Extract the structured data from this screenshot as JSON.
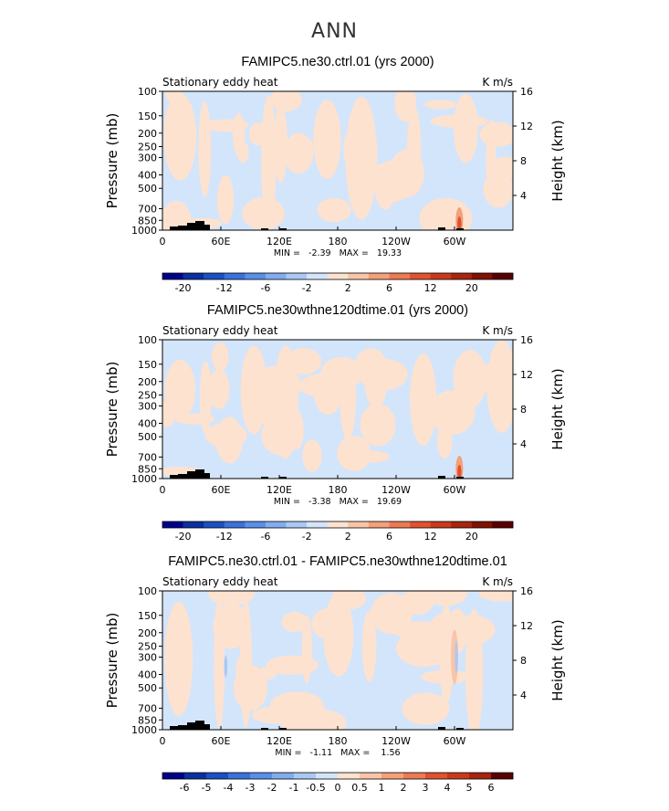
{
  "page_title": "ANN",
  "colors": {
    "neg_small": "#d3e5fb",
    "pos_small": "#fde2d0",
    "topography": "#000000"
  },
  "panels": [
    {
      "title": "FAMIPC5.ne30.ctrl.01 (yrs 2000)",
      "left_label": "Stationary eddy heat",
      "right_label": "K m/s",
      "stats": "MIN =   -2.39   MAX =   19.33",
      "colorbar_labels": [
        "-20",
        "-12",
        "-6",
        "-2",
        "2",
        "6",
        "12",
        "20"
      ]
    },
    {
      "title": "FAMIPC5.ne30wthne120dtime.01 (yrs 2000)",
      "left_label": "Stationary eddy heat",
      "right_label": "K m/s",
      "stats": "MIN =   -3.38   MAX =   19.69",
      "colorbar_labels": [
        "-20",
        "-12",
        "-6",
        "-2",
        "2",
        "6",
        "12",
        "20"
      ]
    },
    {
      "title": "FAMIPC5.ne30.ctrl.01 - FAMIPC5.ne30wthne120dtime.01",
      "left_label": "Stationary eddy heat",
      "right_label": "K m/s",
      "stats": "MIN =   -1.11   MAX =    1.56",
      "colorbar_labels": [
        "-6",
        "-5",
        "-4",
        "-3",
        "-2",
        "-1",
        "-0.5",
        "0",
        "0.5",
        "1",
        "2",
        "3",
        "4",
        "5",
        "6"
      ]
    }
  ],
  "chart_data": [
    {
      "type": "heatmap",
      "title": "FAMIPC5.ne30.ctrl.01 (yrs 2000)",
      "ylabel": "Pressure (mb)",
      "y2label": "Height (km)",
      "x_ticks": [
        "0",
        "60E",
        "120E",
        "180",
        "120W",
        "60W"
      ],
      "y_ticks": [
        "100",
        "150",
        "200",
        "250",
        "300",
        "400",
        "500",
        "700",
        "850",
        "1000"
      ],
      "y2_ticks": [
        "4",
        "8",
        "12",
        "16"
      ],
      "min": -2.39,
      "max": 19.33,
      "colorbar_levels": [
        -20,
        -16,
        -12,
        -8,
        -6,
        -4,
        -2,
        -1,
        1,
        2,
        4,
        6,
        8,
        12,
        16,
        20
      ],
      "colorbar_colors": [
        "#00008b",
        "#0a2fa0",
        "#1c4fc4",
        "#3a72dc",
        "#5b8fe8",
        "#82acef",
        "#a9c8f4",
        "#d3e5fb",
        "#fde2d0",
        "#f9c5a8",
        "#f4a07a",
        "#ec7a53",
        "#e0532f",
        "#c93a1c",
        "#a8250f",
        "#801204",
        "#5a0000"
      ],
      "features": [
        {
          "name": "positive maximum",
          "lon": 305,
          "pressure": 900,
          "value": 19.33
        }
      ]
    },
    {
      "type": "heatmap",
      "title": "FAMIPC5.ne30wthne120dtime.01 (yrs 2000)",
      "ylabel": "Pressure (mb)",
      "y2label": "Height (km)",
      "x_ticks": [
        "0",
        "60E",
        "120E",
        "180",
        "120W",
        "60W"
      ],
      "y_ticks": [
        "100",
        "150",
        "200",
        "250",
        "300",
        "400",
        "500",
        "700",
        "850",
        "1000"
      ],
      "y2_ticks": [
        "4",
        "8",
        "12",
        "16"
      ],
      "min": -3.38,
      "max": 19.69,
      "colorbar_levels": [
        -20,
        -16,
        -12,
        -8,
        -6,
        -4,
        -2,
        -1,
        1,
        2,
        4,
        6,
        8,
        12,
        16,
        20
      ],
      "colorbar_colors": [
        "#00008b",
        "#0a2fa0",
        "#1c4fc4",
        "#3a72dc",
        "#5b8fe8",
        "#82acef",
        "#a9c8f4",
        "#d3e5fb",
        "#fde2d0",
        "#f9c5a8",
        "#f4a07a",
        "#ec7a53",
        "#e0532f",
        "#c93a1c",
        "#a8250f",
        "#801204",
        "#5a0000"
      ],
      "features": [
        {
          "name": "positive maximum",
          "lon": 305,
          "pressure": 900,
          "value": 19.69
        }
      ]
    },
    {
      "type": "heatmap",
      "title": "FAMIPC5.ne30.ctrl.01 - FAMIPC5.ne30wthne120dtime.01",
      "ylabel": "Pressure (mb)",
      "y2label": "Height (km)",
      "x_ticks": [
        "0",
        "60E",
        "120E",
        "180",
        "120W",
        "60W"
      ],
      "y_ticks": [
        "100",
        "150",
        "200",
        "250",
        "300",
        "400",
        "500",
        "700",
        "850",
        "1000"
      ],
      "y2_ticks": [
        "4",
        "8",
        "12",
        "16"
      ],
      "min": -1.11,
      "max": 1.56,
      "colorbar_levels": [
        -6,
        -5,
        -4,
        -3,
        -2,
        -1,
        -0.5,
        0,
        0.5,
        1,
        2,
        3,
        4,
        5,
        6
      ],
      "colorbar_colors": [
        "#00008b",
        "#0a2fa0",
        "#1c4fc4",
        "#3a72dc",
        "#5b8fe8",
        "#82acef",
        "#a9c8f4",
        "#d3e5fb",
        "#fde2d0",
        "#f9c5a8",
        "#f4a07a",
        "#ec7a53",
        "#e0532f",
        "#c93a1c",
        "#a8250f",
        "#5a0000"
      ],
      "features": [
        {
          "name": "negative streak",
          "lon": 65,
          "pressure": 350,
          "value": -1.11
        },
        {
          "name": "positive streak",
          "lon": 300,
          "pressure": 300,
          "value": 1.56
        }
      ]
    }
  ]
}
